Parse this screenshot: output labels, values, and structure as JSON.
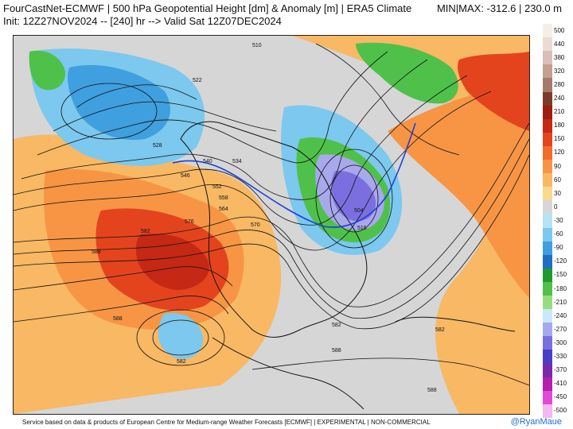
{
  "header": {
    "title": "FourCastNet-ECMWF | 500 hPa Geopotential Height [dm] & Anomaly [m] | ERA5 Climate",
    "init": "Init: 12Z27NOV2024 -- [240] hr --> Valid Sat 12Z07DEC2024",
    "minmax": "MIN|MAX: -312.6 | 230.0 m"
  },
  "colorbar": [
    {
      "label": "500",
      "color": "#f6eee6"
    },
    {
      "label": "440",
      "color": "#eadbd6"
    },
    {
      "label": "380",
      "color": "#d9bfb8"
    },
    {
      "label": "320",
      "color": "#c49f92"
    },
    {
      "label": "280",
      "color": "#a57a6b"
    },
    {
      "label": "240",
      "color": "#7c3c2a"
    },
    {
      "label": "210",
      "color": "#9a1f10"
    },
    {
      "label": "180",
      "color": "#c52814"
    },
    {
      "label": "150",
      "color": "#e3441e"
    },
    {
      "label": "120",
      "color": "#f26c2c"
    },
    {
      "label": "90",
      "color": "#f79545"
    },
    {
      "label": "60",
      "color": "#f8b864"
    },
    {
      "label": "30",
      "color": "#f9d98c"
    },
    {
      "label": "0",
      "color": "#d6d6d6"
    },
    {
      "label": "-30",
      "color": "#b7e2f5"
    },
    {
      "label": "-60",
      "color": "#7cc8ee"
    },
    {
      "label": "-90",
      "color": "#3f9fdf"
    },
    {
      "label": "-120",
      "color": "#1f6fc7"
    },
    {
      "label": "-150",
      "color": "#1f9a2f"
    },
    {
      "label": "-180",
      "color": "#4fc14a"
    },
    {
      "label": "-210",
      "color": "#98dc7e"
    },
    {
      "label": "-240",
      "color": "#c9e9f8"
    },
    {
      "label": "-270",
      "color": "#a8a8ec"
    },
    {
      "label": "-300",
      "color": "#7b6fe0"
    },
    {
      "label": "-330",
      "color": "#4b3ec8"
    },
    {
      "label": "-370",
      "color": "#7a2aa8"
    },
    {
      "label": "-410",
      "color": "#b51fae"
    },
    {
      "label": "-450",
      "color": "#e04ad6"
    },
    {
      "label": "-500",
      "color": "#f5b7f0"
    }
  ],
  "contour_labels": [
    "510",
    "522",
    "528",
    "540",
    "546",
    "552",
    "558",
    "564",
    "570",
    "576",
    "582",
    "588",
    "534",
    "516",
    "504"
  ],
  "footer": {
    "text": "Service based on data & products of European Centre for Medium-range Weather Forecasts [ECMWF] | EXPERIMENTAL | NON-COMMERCIAL",
    "handle": "@RyanMaue"
  }
}
